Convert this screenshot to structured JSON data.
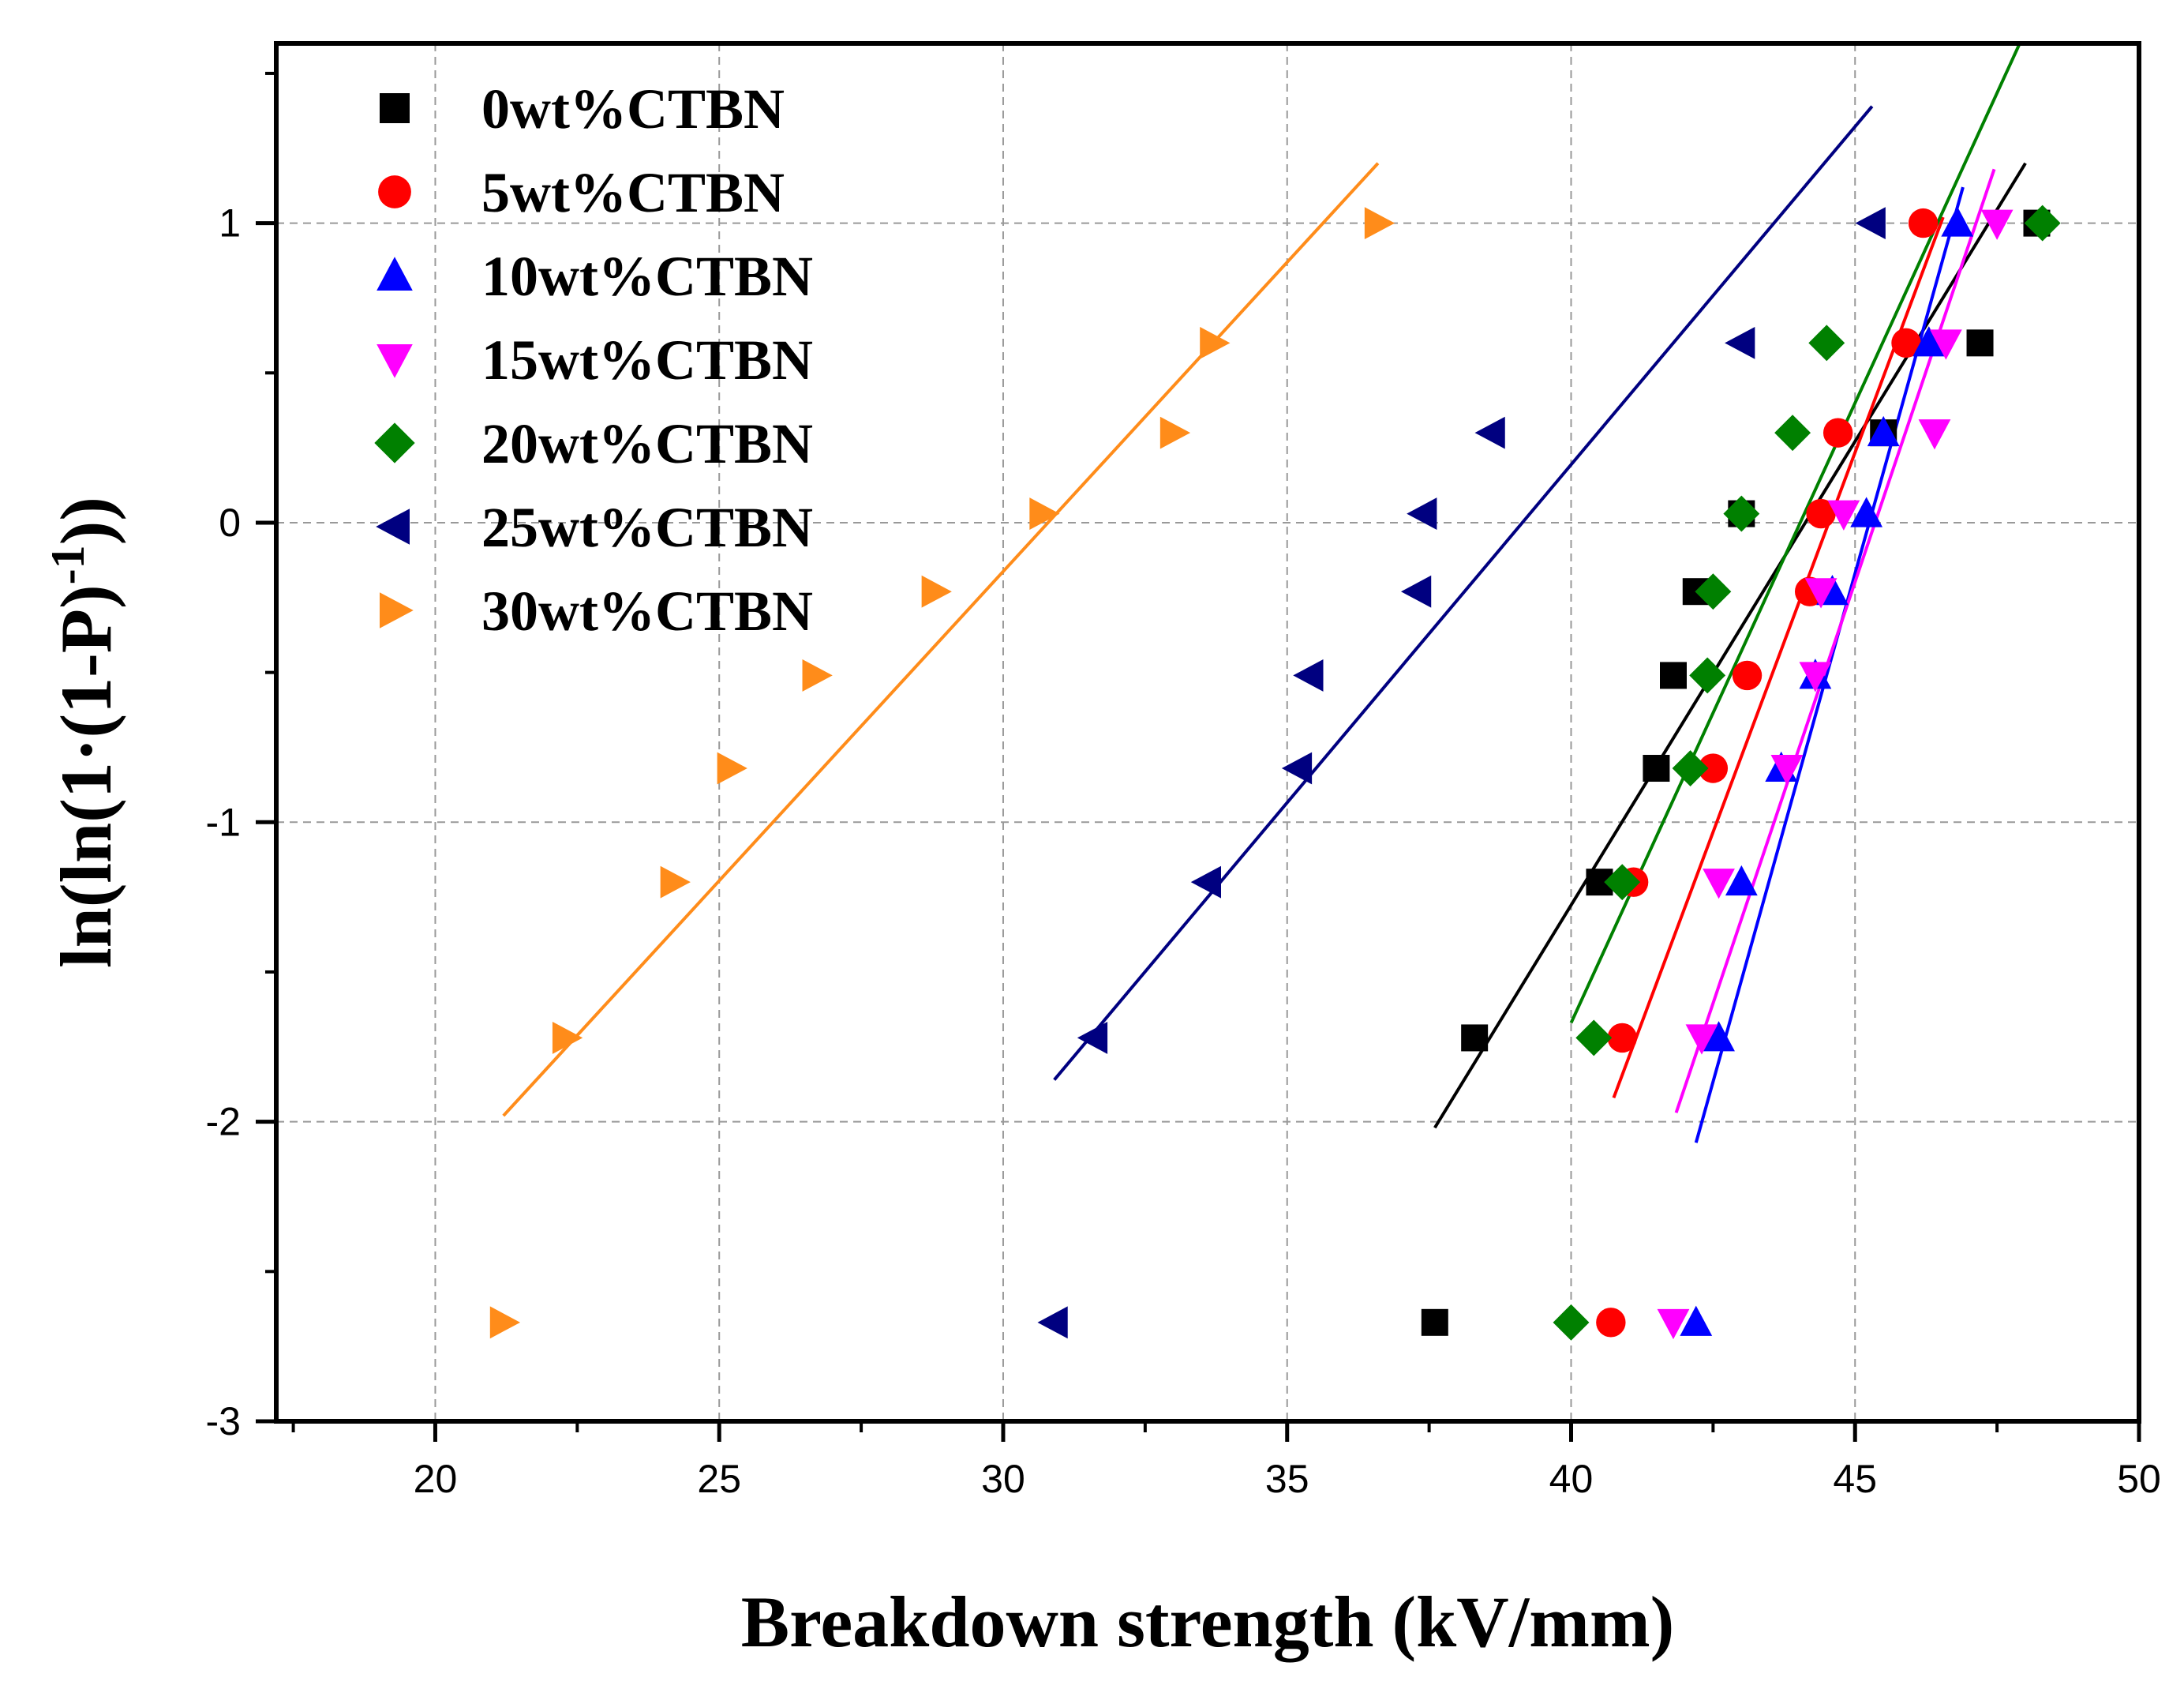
{
  "chart_data": {
    "type": "scatter",
    "title": "",
    "xlabel": "Breakdown strength (kV/mm)",
    "ylabel_parts": [
      "ln(ln(1·(1-P)",
      "-1",
      "))"
    ],
    "xlim": [
      17.2,
      50
    ],
    "ylim": [
      -3,
      1.6
    ],
    "grid": true,
    "legend_position": "top-left",
    "x_ticks": [
      20,
      25,
      30,
      35,
      40,
      45,
      50
    ],
    "x_tick_labels": [
      "20",
      "25",
      "30",
      "35",
      "40",
      "45",
      "50"
    ],
    "y_ticks": [
      -3,
      -2,
      -1,
      0,
      1
    ],
    "y_tick_labels": [
      "-3",
      "-2",
      "-1",
      "0",
      "1"
    ],
    "series": [
      {
        "name": "0wt%CTBN",
        "color": "#000000",
        "marker": "square",
        "x": [
          37.6,
          38.3,
          40.5,
          41.5,
          41.8,
          42.2,
          43.0,
          45.5,
          47.2,
          48.2
        ],
        "y": [
          -2.67,
          -1.72,
          -1.2,
          -0.82,
          -0.51,
          -0.23,
          0.03,
          0.3,
          0.6,
          1.0
        ],
        "fit": {
          "x": [
            37.6,
            48.0
          ],
          "y": [
            -2.02,
            1.2
          ]
        }
      },
      {
        "name": "5wt%CTBN",
        "color": "#ff0000",
        "marker": "circle",
        "x": [
          40.7,
          40.9,
          41.1,
          42.5,
          43.1,
          44.2,
          44.4,
          44.7,
          45.9,
          46.2
        ],
        "y": [
          -2.67,
          -1.72,
          -1.2,
          -0.82,
          -0.51,
          -0.23,
          0.03,
          0.3,
          0.6,
          1.0
        ],
        "fit": {
          "x": [
            40.75,
            46.55
          ],
          "y": [
            -1.92,
            1.02
          ]
        }
      },
      {
        "name": "10wt%CTBN",
        "color": "#0000ff",
        "marker": "triangle-up",
        "x": [
          42.2,
          42.6,
          43.0,
          43.7,
          44.3,
          44.6,
          45.2,
          45.5,
          46.3,
          46.8
        ],
        "y": [
          -2.67,
          -1.72,
          -1.2,
          -0.82,
          -0.51,
          -0.23,
          0.03,
          0.3,
          0.6,
          1.0
        ],
        "fit": {
          "x": [
            42.2,
            46.9
          ],
          "y": [
            -2.07,
            1.12
          ]
        }
      },
      {
        "name": "15wt%CTBN",
        "color": "#ff00ff",
        "marker": "triangle-down",
        "x": [
          41.8,
          42.3,
          42.6,
          43.8,
          44.3,
          44.4,
          44.8,
          46.4,
          46.6,
          47.5
        ],
        "y": [
          -2.67,
          -1.72,
          -1.2,
          -0.82,
          -0.51,
          -0.23,
          0.03,
          0.3,
          0.6,
          1.0
        ],
        "fit": {
          "x": [
            41.85,
            47.45
          ],
          "y": [
            -1.97,
            1.18
          ]
        }
      },
      {
        "name": "20wt%CTBN",
        "color": "#008000",
        "marker": "diamond",
        "x": [
          40.0,
          40.4,
          40.9,
          42.1,
          42.4,
          42.5,
          43.0,
          43.9,
          44.5,
          48.3
        ],
        "y": [
          -2.67,
          -1.72,
          -1.2,
          -0.82,
          -0.51,
          -0.23,
          0.03,
          0.3,
          0.6,
          1.0
        ],
        "fit": {
          "x": [
            40.0,
            47.9
          ],
          "y": [
            -1.67,
            1.6
          ]
        }
      },
      {
        "name": "25wt%CTBN",
        "color": "#000080",
        "marker": "triangle-left",
        "x": [
          30.9,
          31.6,
          33.6,
          35.2,
          35.4,
          37.3,
          37.4,
          38.6,
          43.0,
          45.3
        ],
        "y": [
          -2.67,
          -1.72,
          -1.2,
          -0.82,
          -0.51,
          -0.23,
          0.03,
          0.3,
          0.6,
          1.0
        ],
        "fit": {
          "x": [
            30.9,
            45.3
          ],
          "y": [
            -1.86,
            1.39
          ]
        }
      },
      {
        "name": "30wt%CTBN",
        "color": "#ff8c1a",
        "marker": "triangle-right",
        "x": [
          21.2,
          22.3,
          24.2,
          25.2,
          26.7,
          28.8,
          30.7,
          33.0,
          33.7,
          36.6
        ],
        "y": [
          -2.67,
          -1.72,
          -1.2,
          -0.82,
          -0.51,
          -0.23,
          0.03,
          0.3,
          0.6,
          1.0
        ],
        "fit": {
          "x": [
            21.2,
            36.6
          ],
          "y": [
            -1.98,
            1.2
          ]
        }
      }
    ]
  }
}
